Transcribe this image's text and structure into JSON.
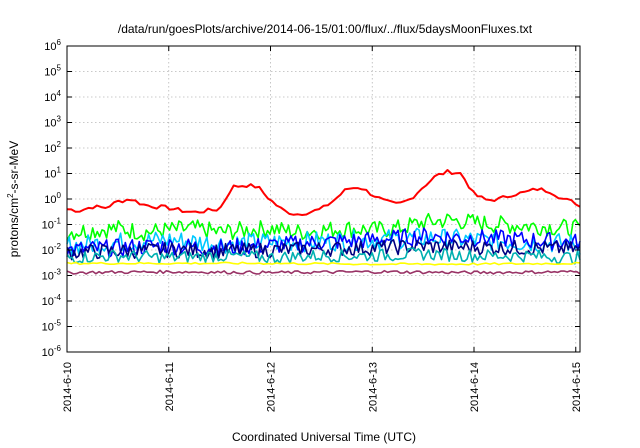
{
  "chart_data": {
    "type": "line",
    "title": "/data/run/goesPlots/archive/2014-06-15/01:00/flux/../flux/5daysMoonFluxes.txt",
    "xlabel": "Coordinated Universal Time (UTC)",
    "ylabel": "protons/cm2-s-sr-MeV",
    "ylabel_parts": [
      "protons/cm",
      "2",
      "-s-sr-MeV"
    ],
    "yscale": "log",
    "ylim": [
      1e-06,
      1000000.0
    ],
    "y_ticks": [
      {
        "exp": "6",
        "value": 1000000.0
      },
      {
        "exp": "5",
        "value": 100000.0
      },
      {
        "exp": "4",
        "value": 10000.0
      },
      {
        "exp": "3",
        "value": 1000.0
      },
      {
        "exp": "2",
        "value": 100.0
      },
      {
        "exp": "1",
        "value": 10.0
      },
      {
        "exp": "0",
        "value": 1.0
      },
      {
        "exp": "-1",
        "value": 0.1
      },
      {
        "exp": "-2",
        "value": 0.01
      },
      {
        "exp": "-3",
        "value": 0.001
      },
      {
        "exp": "-4",
        "value": 0.0001
      },
      {
        "exp": "-5",
        "value": 1e-05
      },
      {
        "exp": "-6",
        "value": 1e-06
      }
    ],
    "y_tick_base": "10",
    "xlim": [
      "2014-06-10 00:00",
      "2014-06-15 01:00"
    ],
    "x_tick_labels": [
      "2014-6-10",
      "2014-6-11",
      "2014-6-12",
      "2014-6-13",
      "2014-6-14",
      "2014-6-15"
    ],
    "x_tick_dates": [
      "2014-06-10",
      "2014-06-11",
      "2014-06-12",
      "2014-06-13",
      "2014-06-14",
      "2014-06-15"
    ],
    "grid": true,
    "series": [
      {
        "color": "#ff0000",
        "x": [
          "2014-06-10 00:00",
          "2014-06-10 03:00",
          "2014-06-10 06:00",
          "2014-06-10 09:00",
          "2014-06-10 12:00",
          "2014-06-10 15:00",
          "2014-06-10 18:00",
          "2014-06-10 21:00",
          "2014-06-11 00:00",
          "2014-06-11 03:00",
          "2014-06-11 06:00",
          "2014-06-11 09:00",
          "2014-06-11 12:00",
          "2014-06-11 15:00",
          "2014-06-11 18:00",
          "2014-06-11 21:00",
          "2014-06-12 00:00",
          "2014-06-12 03:00",
          "2014-06-12 06:00",
          "2014-06-12 09:00",
          "2014-06-12 12:00",
          "2014-06-12 15:00",
          "2014-06-12 18:00",
          "2014-06-12 21:00",
          "2014-06-13 00:00",
          "2014-06-13 03:00",
          "2014-06-13 06:00",
          "2014-06-13 09:00",
          "2014-06-13 12:00",
          "2014-06-13 15:00",
          "2014-06-13 18:00",
          "2014-06-13 21:00",
          "2014-06-14 00:00",
          "2014-06-14 03:00",
          "2014-06-14 06:00",
          "2014-06-14 09:00",
          "2014-06-14 12:00",
          "2014-06-14 15:00",
          "2014-06-14 18:00",
          "2014-06-14 21:00",
          "2014-06-15 00:00",
          "2014-06-15 01:00"
        ],
        "values": [
          0.4,
          0.35,
          0.5,
          0.45,
          0.8,
          1.0,
          0.6,
          0.5,
          0.45,
          0.35,
          0.3,
          0.35,
          0.4,
          3.0,
          3.5,
          3.0,
          0.9,
          0.35,
          0.25,
          0.3,
          0.4,
          0.9,
          2.5,
          3.0,
          1.5,
          0.8,
          0.6,
          1.0,
          3.0,
          8.0,
          12.0,
          10.0,
          1.5,
          0.9,
          1.0,
          1.5,
          1.8,
          2.5,
          2.0,
          1.0,
          0.7,
          0.5
        ]
      },
      {
        "color": "#00ff00",
        "x": [
          "2014-06-10 00:00",
          "2014-06-10 06:00",
          "2014-06-10 12:00",
          "2014-06-10 18:00",
          "2014-06-11 00:00",
          "2014-06-11 06:00",
          "2014-06-11 12:00",
          "2014-06-11 18:00",
          "2014-06-12 00:00",
          "2014-06-12 06:00",
          "2014-06-12 12:00",
          "2014-06-12 18:00",
          "2014-06-13 00:00",
          "2014-06-13 06:00",
          "2014-06-13 12:00",
          "2014-06-13 18:00",
          "2014-06-14 00:00",
          "2014-06-14 06:00",
          "2014-06-14 12:00",
          "2014-06-14 18:00",
          "2014-06-15 00:00",
          "2014-06-15 01:00"
        ],
        "values": [
          0.05,
          0.06,
          0.07,
          0.05,
          0.06,
          0.07,
          0.05,
          0.06,
          0.07,
          0.05,
          0.06,
          0.07,
          0.06,
          0.07,
          0.12,
          0.15,
          0.12,
          0.1,
          0.09,
          0.08,
          0.07,
          0.06
        ]
      },
      {
        "color": "#00c8ff",
        "x": [
          "2014-06-10 00:00",
          "2014-06-10 12:00",
          "2014-06-11 00:00",
          "2014-06-11 12:00",
          "2014-06-12 00:00",
          "2014-06-12 12:00",
          "2014-06-13 00:00",
          "2014-06-13 12:00",
          "2014-06-14 00:00",
          "2014-06-14 12:00",
          "2014-06-15 00:00",
          "2014-06-15 01:00"
        ],
        "values": [
          0.015,
          0.02,
          0.025,
          0.018,
          0.02,
          0.022,
          0.025,
          0.03,
          0.025,
          0.02,
          0.018,
          0.015
        ]
      },
      {
        "color": "#0000ff",
        "x": [
          "2014-06-10 00:00",
          "2014-06-10 12:00",
          "2014-06-11 00:00",
          "2014-06-11 12:00",
          "2014-06-12 00:00",
          "2014-06-12 12:00",
          "2014-06-13 00:00",
          "2014-06-13 12:00",
          "2014-06-14 00:00",
          "2014-06-14 12:00",
          "2014-06-15 00:00",
          "2014-06-15 01:00"
        ],
        "values": [
          0.01,
          0.012,
          0.015,
          0.012,
          0.015,
          0.02,
          0.025,
          0.035,
          0.03,
          0.025,
          0.02,
          0.018
        ]
      },
      {
        "color": "#000080",
        "x": [
          "2014-06-10 00:00",
          "2014-06-10 12:00",
          "2014-06-11 00:00",
          "2014-06-11 12:00",
          "2014-06-12 00:00",
          "2014-06-12 12:00",
          "2014-06-13 00:00",
          "2014-06-13 12:00",
          "2014-06-14 00:00",
          "2014-06-14 12:00",
          "2014-06-15 00:00",
          "2014-06-15 01:00"
        ],
        "values": [
          0.008,
          0.009,
          0.01,
          0.009,
          0.01,
          0.011,
          0.012,
          0.014,
          0.013,
          0.012,
          0.011,
          0.01
        ]
      },
      {
        "color": "#00b0b0",
        "x": [
          "2014-06-10 00:00",
          "2014-06-10 12:00",
          "2014-06-11 00:00",
          "2014-06-11 12:00",
          "2014-06-12 00:00",
          "2014-06-12 12:00",
          "2014-06-13 00:00",
          "2014-06-13 12:00",
          "2014-06-14 00:00",
          "2014-06-14 12:00",
          "2014-06-15 00:00",
          "2014-06-15 01:00"
        ],
        "values": [
          0.005,
          0.006,
          0.005,
          0.006,
          0.005,
          0.006,
          0.006,
          0.007,
          0.006,
          0.006,
          0.005,
          0.005
        ]
      },
      {
        "color": "#ffff00",
        "x": [
          "2014-06-10 00:00",
          "2014-06-11 00:00",
          "2014-06-12 00:00",
          "2014-06-13 00:00",
          "2014-06-14 00:00",
          "2014-06-15 00:00",
          "2014-06-15 01:00"
        ],
        "values": [
          0.003,
          0.003,
          0.003,
          0.0028,
          0.0028,
          0.003,
          0.003
        ]
      },
      {
        "color": "#993366",
        "x": [
          "2014-06-10 00:00",
          "2014-06-11 00:00",
          "2014-06-12 00:00",
          "2014-06-13 00:00",
          "2014-06-14 00:00",
          "2014-06-15 00:00",
          "2014-06-15 01:00"
        ],
        "values": [
          0.0013,
          0.0014,
          0.0013,
          0.0014,
          0.0013,
          0.0014,
          0.0013
        ]
      }
    ]
  }
}
